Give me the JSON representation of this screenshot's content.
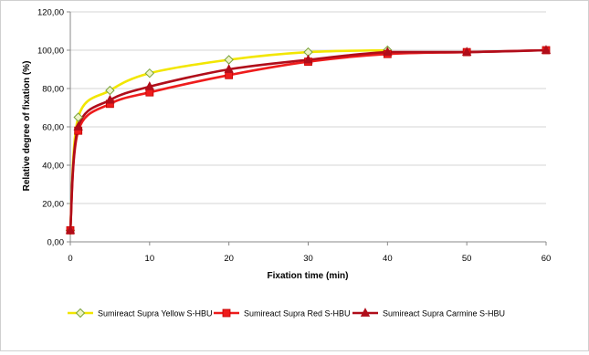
{
  "chart_data": {
    "type": "line",
    "xlabel": "Fixation time (min)",
    "ylabel": "Relative degree of fixation (%)",
    "xlim": [
      0,
      60
    ],
    "ylim": [
      0,
      120
    ],
    "x_ticks": [
      "0",
      "10",
      "20",
      "30",
      "40",
      "50",
      "60"
    ],
    "y_ticks": [
      "0,00",
      "20,00",
      "40,00",
      "60,00",
      "80,00",
      "100,00",
      "120,00"
    ],
    "grid": "horizontal",
    "legend_position": "bottom",
    "series": [
      {
        "name": "Sumireact Supra Yellow S-HBU",
        "color": "#f2e600",
        "marker": "diamond",
        "x": [
          0,
          1,
          5,
          10,
          20,
          30,
          40
        ],
        "y": [
          6.0,
          65.0,
          79.0,
          88.0,
          95.0,
          99.0,
          100.0
        ]
      },
      {
        "name": "Sumireact Supra Red S-HBU",
        "color": "#ee1c1c",
        "marker": "square",
        "x": [
          0,
          1,
          5,
          10,
          20,
          30,
          40,
          50,
          60
        ],
        "y": [
          6.0,
          58.0,
          72.0,
          78.0,
          87.0,
          94.0,
          98.0,
          99.0,
          100.0
        ]
      },
      {
        "name": "Sumireact Supra Carmine S-HBU",
        "color": "#b00d1a",
        "marker": "triangle",
        "x": [
          0,
          1,
          5,
          10,
          20,
          30,
          40,
          50,
          60
        ],
        "y": [
          6.0,
          60.0,
          74.0,
          81.0,
          90.0,
          95.0,
          99.0,
          99.0,
          100.0
        ]
      }
    ]
  }
}
